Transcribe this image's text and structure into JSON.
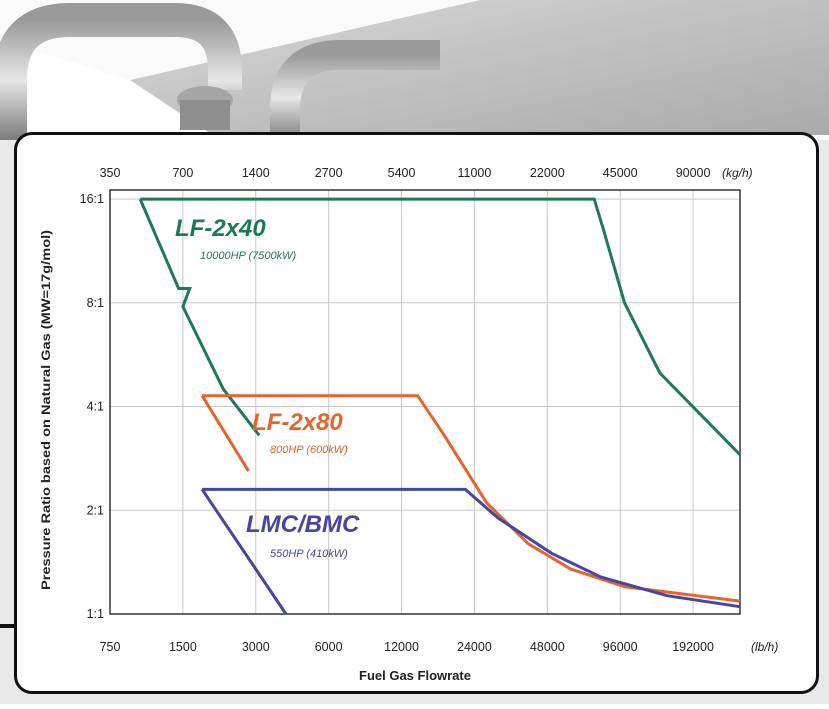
{
  "chart_data": {
    "type": "line",
    "title": "",
    "xlabel": "Fuel Gas Flowrate",
    "ylabel": "Pressure Ratio based on Natural Gas (MW=17g/mol)",
    "x_bottom": {
      "unit": "(lb/h)",
      "ticks": [
        750,
        1500,
        3000,
        6000,
        12000,
        24000,
        48000,
        96000,
        192000
      ],
      "tick_labels": [
        "750",
        "1500",
        "3000",
        "6000",
        "12000",
        "24000",
        "48000",
        "96000",
        "192000"
      ],
      "scale": "log",
      "range": [
        750,
        300000
      ]
    },
    "x_top": {
      "unit": "(kg/h)",
      "tick_labels": [
        "350",
        "700",
        "1400",
        "2700",
        "5400",
        "11000",
        "22000",
        "45000",
        "90000"
      ]
    },
    "y": {
      "scale": "log",
      "ticks": [
        1,
        2,
        4,
        8,
        16
      ],
      "tick_labels": [
        "1:1",
        "2:1",
        "4:1",
        "8:1",
        "16:1"
      ],
      "range": [
        1,
        17
      ]
    },
    "grid": true,
    "series": [
      {
        "name": "LF-2x40",
        "rating": "10000HP (7500kW)",
        "color": "#1e7a55",
        "points": [
          [
            1000,
            16
          ],
          [
            1440,
            8.8
          ],
          [
            1600,
            8.8
          ],
          [
            1500,
            7.8
          ],
          [
            2200,
            4.5
          ],
          [
            3100,
            3.3
          ]
        ]
      },
      {
        "name": "LF-2x40",
        "rating": "",
        "color": "#1e7a55",
        "points": [
          [
            1000,
            16
          ],
          [
            75000,
            16
          ],
          [
            82000,
            13
          ],
          [
            100000,
            8
          ],
          [
            140000,
            5
          ],
          [
            300000,
            2.9
          ]
        ]
      },
      {
        "name": "LF-2x80",
        "rating": "800HP (600kW)",
        "color": "#e8622a",
        "points": [
          [
            1800,
            4.3
          ],
          [
            14000,
            4.3
          ],
          [
            18000,
            3.3
          ],
          [
            27000,
            2.1
          ],
          [
            40000,
            1.6
          ],
          [
            60000,
            1.35
          ],
          [
            100000,
            1.2
          ],
          [
            300000,
            1.09
          ]
        ]
      },
      {
        "name": "LF-2x80",
        "rating": "",
        "color": "#e8622a",
        "points": [
          [
            1800,
            4.3
          ],
          [
            2800,
            2.6
          ]
        ]
      },
      {
        "name": "LMC/BMC",
        "rating": "550HP (410kW)",
        "color": "#4545a5",
        "points": [
          [
            1800,
            2.3
          ],
          [
            22000,
            2.3
          ],
          [
            30000,
            1.9
          ],
          [
            50000,
            1.5
          ],
          [
            80000,
            1.28
          ],
          [
            150000,
            1.13
          ],
          [
            300000,
            1.05
          ]
        ]
      },
      {
        "name": "LMC/BMC",
        "rating": "",
        "color": "#4545a5",
        "points": [
          [
            1800,
            2.3
          ],
          [
            4000,
            1
          ]
        ]
      }
    ]
  }
}
